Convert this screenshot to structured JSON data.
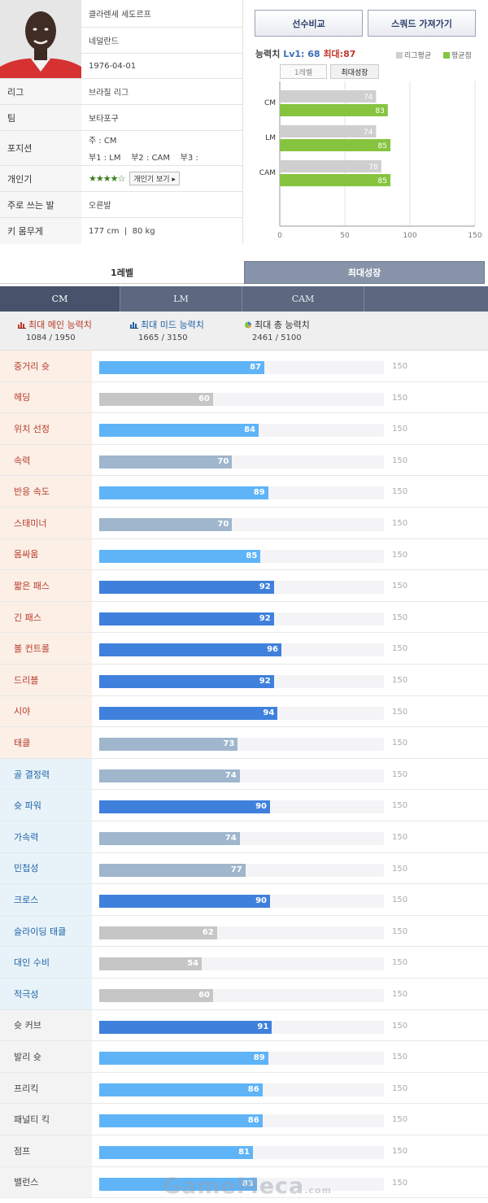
{
  "player": {
    "name": "클라렌세 세도르프",
    "nation": "네덜란드",
    "birth": "1976-04-01",
    "fields": [
      {
        "label": "리그",
        "value": "브라질 리그"
      },
      {
        "label": "팀",
        "value": "보타포구"
      },
      {
        "label": "포지션",
        "value_main": "주 : CM",
        "value_sub": "부1 : LM    부2 : CAM    부3 :"
      },
      {
        "label": "개인기",
        "stars": "★★★★☆",
        "button": "개인기 보기 ▸"
      },
      {
        "label": "주로 쓰는 발",
        "value": "오른발"
      },
      {
        "label": "키 몸무게",
        "value": "177 cm  |  80 kg"
      }
    ]
  },
  "buttons": {
    "compare": "선수비교",
    "squad": "스쿼드 가져가기"
  },
  "ability": {
    "label": "능력치",
    "lv": "Lv1: 68",
    "max": "최대:87"
  },
  "legend": {
    "league": "리그평균",
    "avg": "평균점"
  },
  "toggle": {
    "lv1": "1레벨",
    "max": "최대성장"
  },
  "mini_chart": {
    "categories": [
      "CM",
      "LM",
      "CAM"
    ],
    "league_avg": [
      74,
      74,
      78
    ],
    "player_avg": [
      83,
      85,
      85
    ],
    "ticks": [
      0,
      50,
      100,
      150
    ],
    "xlim": [
      0,
      150
    ],
    "colors": {
      "league": "#cfcfcf",
      "player": "#86c440"
    }
  },
  "level_tabs": {
    "lv1": "1레벨",
    "max": "최대성장"
  },
  "position_tabs": [
    "CM",
    "LM",
    "CAM"
  ],
  "summary": [
    {
      "label": "최대 메인 능력치",
      "value": "1084 / 1950"
    },
    {
      "label": "최대 미드 능력치",
      "value": "1665 / 3150"
    },
    {
      "label": "최대 총 능력치",
      "value": "2461 / 5100"
    }
  ],
  "stat_max_label": "150",
  "stat_scale_max": 150,
  "stats": [
    {
      "name": "중거리 슛",
      "value": 87,
      "group": "main",
      "color": "#5fb4f7"
    },
    {
      "name": "헤딩",
      "value": 60,
      "group": "main",
      "color": "#c6c6c6"
    },
    {
      "name": "위치 선정",
      "value": 84,
      "group": "main",
      "color": "#5fb4f7"
    },
    {
      "name": "속력",
      "value": 70,
      "group": "main",
      "color": "#9fb6cc"
    },
    {
      "name": "반응 속도",
      "value": 89,
      "group": "main",
      "color": "#5fb4f7"
    },
    {
      "name": "스태미너",
      "value": 70,
      "group": "main",
      "color": "#9fb6cc"
    },
    {
      "name": "몸싸움",
      "value": 85,
      "group": "main",
      "color": "#5fb4f7"
    },
    {
      "name": "짧은 패스",
      "value": 92,
      "group": "main",
      "color": "#3f80dc"
    },
    {
      "name": "긴 패스",
      "value": 92,
      "group": "main",
      "color": "#3f80dc"
    },
    {
      "name": "볼 컨트롤",
      "value": 96,
      "group": "main",
      "color": "#3f80dc"
    },
    {
      "name": "드리블",
      "value": 92,
      "group": "main",
      "color": "#3f80dc"
    },
    {
      "name": "시야",
      "value": 94,
      "group": "main",
      "color": "#3f80dc"
    },
    {
      "name": "태클",
      "value": 73,
      "group": "main",
      "color": "#9fb6cc"
    },
    {
      "name": "골 결정력",
      "value": 74,
      "group": "mid",
      "color": "#9fb6cc"
    },
    {
      "name": "슛 파워",
      "value": 90,
      "group": "mid",
      "color": "#3f80dc"
    },
    {
      "name": "가속력",
      "value": 74,
      "group": "mid",
      "color": "#9fb6cc"
    },
    {
      "name": "민첩성",
      "value": 77,
      "group": "mid",
      "color": "#9fb6cc"
    },
    {
      "name": "크로스",
      "value": 90,
      "group": "mid",
      "color": "#3f80dc"
    },
    {
      "name": "슬라이딩 태클",
      "value": 62,
      "group": "mid",
      "color": "#c6c6c6"
    },
    {
      "name": "대인 수비",
      "value": 54,
      "group": "mid",
      "color": "#c6c6c6"
    },
    {
      "name": "적극성",
      "value": 60,
      "group": "mid",
      "color": "#c6c6c6"
    },
    {
      "name": "슛 커브",
      "value": 91,
      "group": "other",
      "color": "#3f80dc"
    },
    {
      "name": "발리 슛",
      "value": 89,
      "group": "other",
      "color": "#5fb4f7"
    },
    {
      "name": "프리킥",
      "value": 86,
      "group": "other",
      "color": "#5fb4f7"
    },
    {
      "name": "패널티 킥",
      "value": 86,
      "group": "other",
      "color": "#5fb4f7"
    },
    {
      "name": "점프",
      "value": 81,
      "group": "other",
      "color": "#5fb4f7"
    },
    {
      "name": "밸런스",
      "value": 83,
      "group": "other",
      "color": "#5fb4f7"
    }
  ],
  "watermark": {
    "main": "GameMeca",
    "suffix": ".com"
  }
}
